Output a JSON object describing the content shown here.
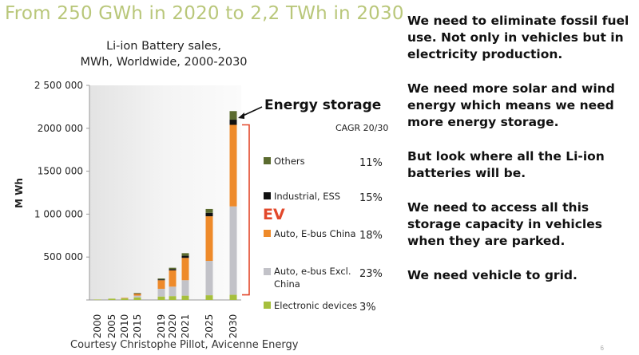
{
  "slide": {
    "title": "From 250 GWh in 2020 to 2,2 TWh in 2030",
    "courtesy": "Courtesy Christophe Pillot, Avicenne Energy",
    "page_number": "6",
    "bullets": [
      "We need to eliminate fossil fuel use.  Not only in vehicles but in electricity production.",
      "We need more solar and wind energy which means we need more energy storage.",
      "But look where all the Li-ion batteries will be.",
      "We need to access all this storage capacity in vehicles when they are parked.",
      "We need vehicle to grid."
    ]
  },
  "chart_data": {
    "type": "bar",
    "stacked": true,
    "title_lines": [
      "Li-ion Battery sales,",
      "MWh, Worldwide, 2000-2030"
    ],
    "ylabel": "M Wh",
    "xlabel": "",
    "ylim": [
      0,
      2500000
    ],
    "yticks": [
      0,
      500000,
      1000000,
      1500000,
      2000000,
      2500000
    ],
    "ytick_labels": [
      "",
      "500 000",
      "1 000 000",
      "1500 000",
      "2000 000",
      "2 500 000"
    ],
    "categories": [
      "2000",
      "2005",
      "2010",
      "2015",
      "2019",
      "2020",
      "2021",
      "2025",
      "2030"
    ],
    "cagr_header": "CAGR 20/30",
    "series": [
      {
        "name": "Electronic devices",
        "color": "#a6bf3c",
        "cagr": "3%",
        "values": [
          5000,
          15000,
          20000,
          30000,
          40000,
          45000,
          50000,
          55000,
          60000
        ]
      },
      {
        "name": "Auto, e-bus Excl. China",
        "color": "#c2c2c8",
        "cagr": "23%",
        "values": [
          0,
          0,
          3000,
          20000,
          90000,
          110000,
          180000,
          400000,
          1030000
        ]
      },
      {
        "name": "Auto, E-bus China",
        "color": "#ee8a2a",
        "cagr": "18%",
        "values": [
          0,
          0,
          2000,
          25000,
          100000,
          190000,
          260000,
          520000,
          950000
        ]
      },
      {
        "name": "Industrial, ESS",
        "color": "#111111",
        "cagr": "15%",
        "values": [
          0,
          0,
          0,
          2000,
          10000,
          15000,
          25000,
          40000,
          60000
        ]
      },
      {
        "name": "Others",
        "color": "#5b6b2f",
        "cagr": "11%",
        "values": [
          0,
          0,
          0,
          3000,
          10000,
          15000,
          30000,
          45000,
          100000
        ]
      }
    ],
    "annotations": {
      "energy_storage": "Energy storage",
      "ev": "EV"
    },
    "grid": false,
    "legend_position": "right"
  }
}
